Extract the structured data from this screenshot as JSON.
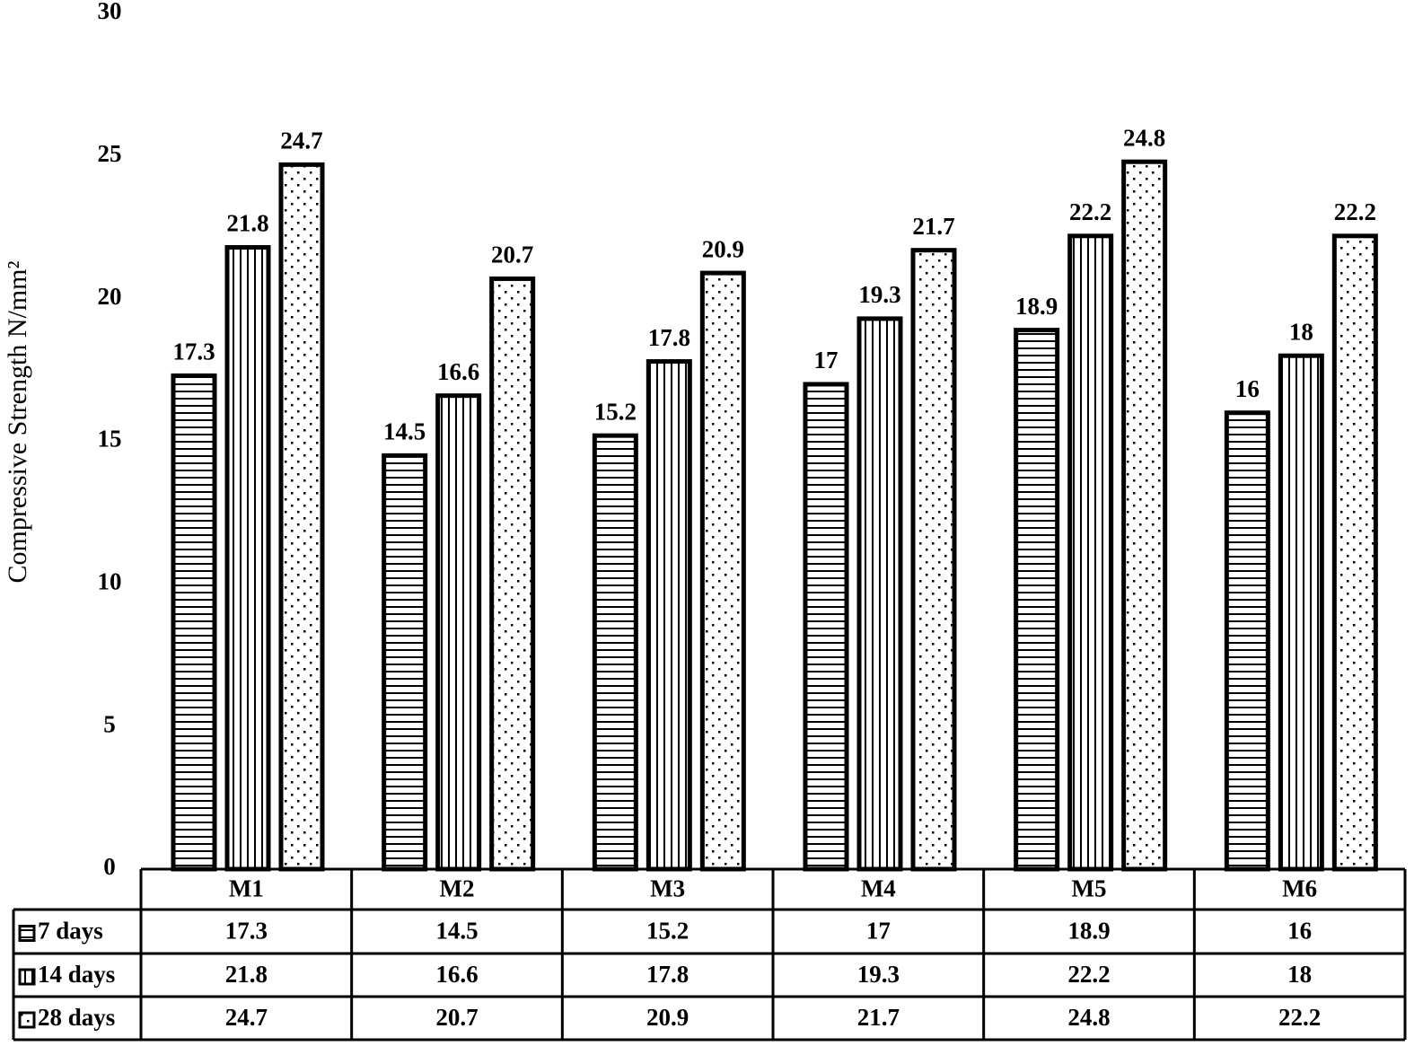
{
  "chart_data": {
    "type": "bar",
    "y_axis_label": "Compressive Strength N/mm²",
    "categories": [
      "M1",
      "M2",
      "M3",
      "M4",
      "M5",
      "M6"
    ],
    "series": [
      {
        "name": "7 days",
        "color": "#000000",
        "pattern": "horizontal-lines",
        "values": [
          17.3,
          14.5,
          15.2,
          17,
          18.9,
          16
        ]
      },
      {
        "name": "14 days",
        "color": "#000000",
        "pattern": "vertical-lines",
        "values": [
          21.8,
          16.6,
          17.8,
          19.3,
          22.2,
          18
        ]
      },
      {
        "name": "28 days",
        "color": "#000000",
        "pattern": "dots",
        "values": [
          24.7,
          20.7,
          20.9,
          21.7,
          24.8,
          22.2
        ]
      }
    ],
    "ylim": [
      0,
      30
    ],
    "yticks": [
      0,
      5,
      10,
      15,
      20,
      25,
      30
    ],
    "grid": false,
    "data_table": true
  }
}
